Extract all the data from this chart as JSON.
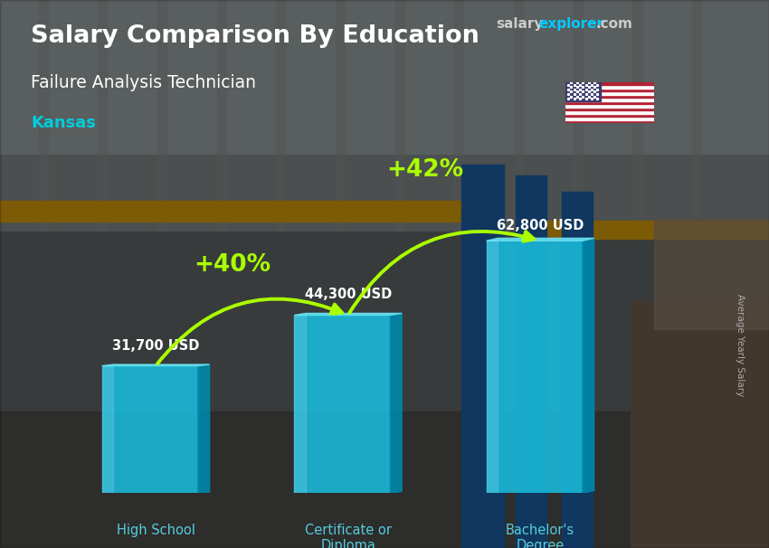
{
  "title_main": "Salary Comparison By Education",
  "title_sub": "Failure Analysis Technician",
  "title_location": "Kansas",
  "categories": [
    "High School",
    "Certificate or\nDiploma",
    "Bachelor's\nDegree"
  ],
  "values": [
    31700,
    44300,
    62800
  ],
  "value_labels": [
    "31,700 USD",
    "44,300 USD",
    "62,800 USD"
  ],
  "pct_labels": [
    "+40%",
    "+42%"
  ],
  "text_color_white": "#ffffff",
  "text_color_cyan": "#00ccdd",
  "text_color_green": "#aaff00",
  "bar_front": "#1ab8d8",
  "bar_side": "#0088aa",
  "bar_top": "#66ddee",
  "bar_light": "#aaeeff",
  "brand_salary_color": "#cccccc",
  "brand_explorer_color": "#00ccff",
  "brand_com_color": "#cccccc",
  "ylabel": "Average Yearly Salary",
  "ylim_max": 75000,
  "cat_label_color": "#55ccdd"
}
